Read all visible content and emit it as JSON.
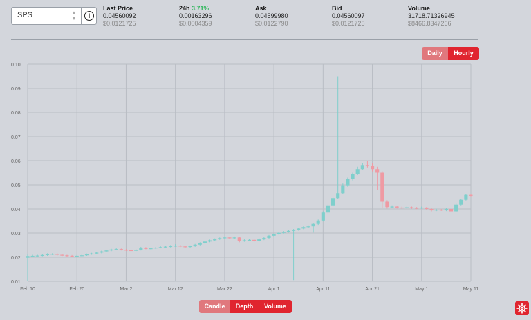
{
  "pair_select": {
    "value": "SPS",
    "chevron_icon": "up-down-chevron-icon",
    "info_icon": "info-icon"
  },
  "stats": [
    {
      "label": "Last Price",
      "value": "0.04560092",
      "sub": "$0.0121725"
    },
    {
      "label": "24h",
      "change": "3.71%",
      "value": "0.00163296",
      "sub": "$0.0004359"
    },
    {
      "label": "Ask",
      "value": "0.04599980",
      "sub": "$0.0122790"
    },
    {
      "label": "Bid",
      "value": "0.04560097",
      "sub": "$0.0121725"
    },
    {
      "label": "Volume",
      "value": "31718.71326945",
      "sub": "$8466.8347266"
    }
  ],
  "interval_buttons": [
    "Daily",
    "Hourly"
  ],
  "interval_active": "Daily",
  "view_buttons": [
    "Candle",
    "Depth",
    "Volume"
  ],
  "view_active": "Candle",
  "settings_icon": "gear-icon",
  "colors": {
    "up": "#7fcfcc",
    "down": "#ef9aa3",
    "button": "#e0252f",
    "button_active": "#e0787d",
    "positive": "#29b657"
  },
  "chart_data": {
    "type": "candlestick",
    "y_ticks": [
      "0.10",
      "0.09",
      "0.08",
      "0.07",
      "0.06",
      "0.05",
      "0.04",
      "0.03",
      "0.02",
      "0.01"
    ],
    "x_ticks": [
      "Feb 10",
      "Feb 20",
      "Mar 2",
      "Mar 12",
      "Mar 22",
      "Apr 1",
      "Apr 11",
      "Apr 21",
      "May 1",
      "May 11"
    ],
    "ylim": [
      0.01,
      0.1
    ],
    "xlim": [
      "2022-02-10",
      "2022-05-11"
    ],
    "grid": true,
    "candles": [
      [
        "2022-02-10",
        0.0198,
        0.0205,
        0.0212,
        0.0102
      ],
      [
        "2022-02-11",
        0.0205,
        0.0206,
        0.021,
        0.02
      ],
      [
        "2022-02-12",
        0.0206,
        0.0207,
        0.021,
        0.0203
      ],
      [
        "2022-02-13",
        0.0207,
        0.0209,
        0.0212,
        0.0204
      ],
      [
        "2022-02-14",
        0.0209,
        0.0212,
        0.0216,
        0.0206
      ],
      [
        "2022-02-15",
        0.0212,
        0.0214,
        0.0216,
        0.0209
      ],
      [
        "2022-02-16",
        0.0214,
        0.021,
        0.0216,
        0.0207
      ],
      [
        "2022-02-17",
        0.021,
        0.0208,
        0.0213,
        0.0205
      ],
      [
        "2022-02-18",
        0.0208,
        0.0206,
        0.021,
        0.0203
      ],
      [
        "2022-02-19",
        0.0206,
        0.0204,
        0.0209,
        0.0201
      ],
      [
        "2022-02-20",
        0.0204,
        0.0206,
        0.0209,
        0.0202
      ],
      [
        "2022-02-21",
        0.0206,
        0.0208,
        0.0211,
        0.0204
      ],
      [
        "2022-02-22",
        0.0208,
        0.0212,
        0.0215,
        0.0206
      ],
      [
        "2022-02-23",
        0.0212,
        0.0215,
        0.0218,
        0.021
      ],
      [
        "2022-02-24",
        0.0215,
        0.0219,
        0.0222,
        0.0212
      ],
      [
        "2022-02-25",
        0.0219,
        0.0224,
        0.0227,
        0.0216
      ],
      [
        "2022-02-26",
        0.0224,
        0.0228,
        0.0231,
        0.0221
      ],
      [
        "2022-02-27",
        0.0228,
        0.0232,
        0.0235,
        0.0225
      ],
      [
        "2022-02-28",
        0.0232,
        0.0234,
        0.0237,
        0.0229
      ],
      [
        "2022-03-01",
        0.0234,
        0.0231,
        0.0236,
        0.0228
      ],
      [
        "2022-03-02",
        0.0231,
        0.0229,
        0.0234,
        0.0226
      ],
      [
        "2022-03-03",
        0.0229,
        0.0228,
        0.0232,
        0.0225
      ],
      [
        "2022-03-04",
        0.0228,
        0.023,
        0.0233,
        0.0225
      ],
      [
        "2022-03-05",
        0.023,
        0.0238,
        0.0243,
        0.0228
      ],
      [
        "2022-03-06",
        0.0238,
        0.0236,
        0.0242,
        0.0233
      ],
      [
        "2022-03-07",
        0.0236,
        0.0237,
        0.024,
        0.0233
      ],
      [
        "2022-03-08",
        0.0237,
        0.024,
        0.0243,
        0.0234
      ],
      [
        "2022-03-09",
        0.024,
        0.0242,
        0.0245,
        0.0237
      ],
      [
        "2022-03-10",
        0.0242,
        0.0244,
        0.0247,
        0.0239
      ],
      [
        "2022-03-11",
        0.0244,
        0.0246,
        0.025,
        0.0241
      ],
      [
        "2022-03-12",
        0.0246,
        0.0248,
        0.0254,
        0.0243
      ],
      [
        "2022-03-13",
        0.0248,
        0.0245,
        0.0251,
        0.0242
      ],
      [
        "2022-03-14",
        0.0245,
        0.0243,
        0.0248,
        0.024
      ],
      [
        "2022-03-15",
        0.0243,
        0.0246,
        0.0249,
        0.024
      ],
      [
        "2022-03-16",
        0.0246,
        0.0252,
        0.0255,
        0.0243
      ],
      [
        "2022-03-17",
        0.0252,
        0.0259,
        0.0262,
        0.0249
      ],
      [
        "2022-03-18",
        0.0259,
        0.0265,
        0.0268,
        0.0256
      ],
      [
        "2022-03-19",
        0.0265,
        0.027,
        0.0273,
        0.0262
      ],
      [
        "2022-03-20",
        0.027,
        0.0275,
        0.0278,
        0.0267
      ],
      [
        "2022-03-21",
        0.0275,
        0.0279,
        0.0282,
        0.0272
      ],
      [
        "2022-03-22",
        0.0279,
        0.0282,
        0.0286,
        0.0276
      ],
      [
        "2022-03-23",
        0.0282,
        0.028,
        0.0285,
        0.0277
      ],
      [
        "2022-03-24",
        0.028,
        0.0282,
        0.0286,
        0.0277
      ],
      [
        "2022-03-25",
        0.0282,
        0.0268,
        0.0284,
        0.0262
      ],
      [
        "2022-03-26",
        0.0268,
        0.027,
        0.0274,
        0.0264
      ],
      [
        "2022-03-27",
        0.027,
        0.0272,
        0.0276,
        0.0266
      ],
      [
        "2022-03-28",
        0.0272,
        0.0268,
        0.0275,
        0.0264
      ],
      [
        "2022-03-29",
        0.0268,
        0.0274,
        0.0278,
        0.0265
      ],
      [
        "2022-03-30",
        0.0274,
        0.028,
        0.0283,
        0.0271
      ],
      [
        "2022-03-31",
        0.028,
        0.0289,
        0.0292,
        0.0277
      ],
      [
        "2022-04-01",
        0.0289,
        0.0296,
        0.0299,
        0.0286
      ],
      [
        "2022-04-02",
        0.0296,
        0.0301,
        0.0304,
        0.0293
      ],
      [
        "2022-04-03",
        0.0301,
        0.0305,
        0.0308,
        0.0298
      ],
      [
        "2022-04-04",
        0.0305,
        0.0309,
        0.0312,
        0.0302
      ],
      [
        "2022-04-05",
        0.0309,
        0.0313,
        0.0317,
        0.0105
      ],
      [
        "2022-04-06",
        0.0313,
        0.0319,
        0.0322,
        0.031
      ],
      [
        "2022-04-07",
        0.0319,
        0.0325,
        0.0328,
        0.0316
      ],
      [
        "2022-04-08",
        0.0325,
        0.0328,
        0.0332,
        0.0322
      ],
      [
        "2022-04-09",
        0.0328,
        0.0338,
        0.0342,
        0.0302
      ],
      [
        "2022-04-10",
        0.0338,
        0.0352,
        0.0356,
        0.0334
      ],
      [
        "2022-04-11",
        0.0352,
        0.0385,
        0.039,
        0.0348
      ],
      [
        "2022-04-12",
        0.0385,
        0.0415,
        0.042,
        0.038
      ],
      [
        "2022-04-13",
        0.0415,
        0.0445,
        0.045,
        0.041
      ],
      [
        "2022-04-14",
        0.0445,
        0.0465,
        0.095,
        0.044
      ],
      [
        "2022-04-15",
        0.0465,
        0.0498,
        0.0505,
        0.046
      ],
      [
        "2022-04-16",
        0.0498,
        0.0525,
        0.053,
        0.0492
      ],
      [
        "2022-04-17",
        0.0525,
        0.0545,
        0.055,
        0.0518
      ],
      [
        "2022-04-18",
        0.0545,
        0.0565,
        0.0575,
        0.054
      ],
      [
        "2022-04-19",
        0.0565,
        0.0582,
        0.059,
        0.056
      ],
      [
        "2022-04-20",
        0.0582,
        0.0578,
        0.0598,
        0.0572
      ],
      [
        "2022-04-21",
        0.0578,
        0.0565,
        0.059,
        0.0555
      ],
      [
        "2022-04-22",
        0.0565,
        0.055,
        0.0575,
        0.0478
      ],
      [
        "2022-04-23",
        0.055,
        0.043,
        0.0556,
        0.0405
      ],
      [
        "2022-04-24",
        0.043,
        0.0408,
        0.0436,
        0.0402
      ],
      [
        "2022-04-25",
        0.0408,
        0.041,
        0.0415,
        0.0404
      ],
      [
        "2022-04-26",
        0.041,
        0.0406,
        0.0413,
        0.0402
      ],
      [
        "2022-04-27",
        0.0406,
        0.0404,
        0.041,
        0.04
      ],
      [
        "2022-04-28",
        0.0404,
        0.0407,
        0.0411,
        0.0401
      ],
      [
        "2022-04-29",
        0.0407,
        0.0405,
        0.041,
        0.0401
      ],
      [
        "2022-04-30",
        0.0405,
        0.0403,
        0.0408,
        0.0399
      ],
      [
        "2022-05-01",
        0.0403,
        0.0406,
        0.041,
        0.04
      ],
      [
        "2022-05-02",
        0.0406,
        0.04,
        0.0408,
        0.0396
      ],
      [
        "2022-05-03",
        0.04,
        0.0394,
        0.0403,
        0.039
      ],
      [
        "2022-05-04",
        0.0394,
        0.0397,
        0.0401,
        0.0391
      ],
      [
        "2022-05-05",
        0.0397,
        0.0395,
        0.04,
        0.0392
      ],
      [
        "2022-05-06",
        0.0395,
        0.04,
        0.0404,
        0.0391
      ],
      [
        "2022-05-07",
        0.04,
        0.039,
        0.0403,
        0.0388
      ],
      [
        "2022-05-08",
        0.039,
        0.0418,
        0.0422,
        0.0388
      ],
      [
        "2022-05-09",
        0.0418,
        0.0438,
        0.0442,
        0.0415
      ],
      [
        "2022-05-10",
        0.0438,
        0.0458,
        0.0462,
        0.0435
      ],
      [
        "2022-05-11",
        0.0458,
        0.0456,
        0.046,
        0.0452
      ]
    ]
  }
}
